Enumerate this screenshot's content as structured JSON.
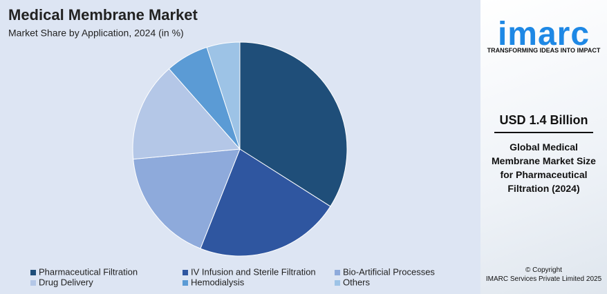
{
  "chart_data": {
    "type": "pie",
    "title": "Medical Membrane Market",
    "subtitle": "Market Share by Application, 2024 (in %)",
    "categories": [
      "Pharmaceutical Filtration",
      "IV Infusion and Sterile Filtration",
      "Bio-Artificial Processes",
      "Drug Delivery",
      "Hemodialysis",
      "Others"
    ],
    "values": [
      34,
      22,
      17.5,
      15,
      6.5,
      5
    ],
    "colors": [
      "#1f4e79",
      "#2f56a0",
      "#8eaadb",
      "#b4c7e7",
      "#5b9bd5",
      "#9dc3e6"
    ]
  },
  "sidebar": {
    "brand": "imarc",
    "tagline": "TRANSFORMING IDEAS INTO IMPACT",
    "stat": "USD 1.4 Billion",
    "stat_description": "Global Medical Membrane Market Size for Pharmaceutical Filtration (2024)",
    "copyright": "© Copyright",
    "company": "IMARC Services Private Limited 2025"
  }
}
